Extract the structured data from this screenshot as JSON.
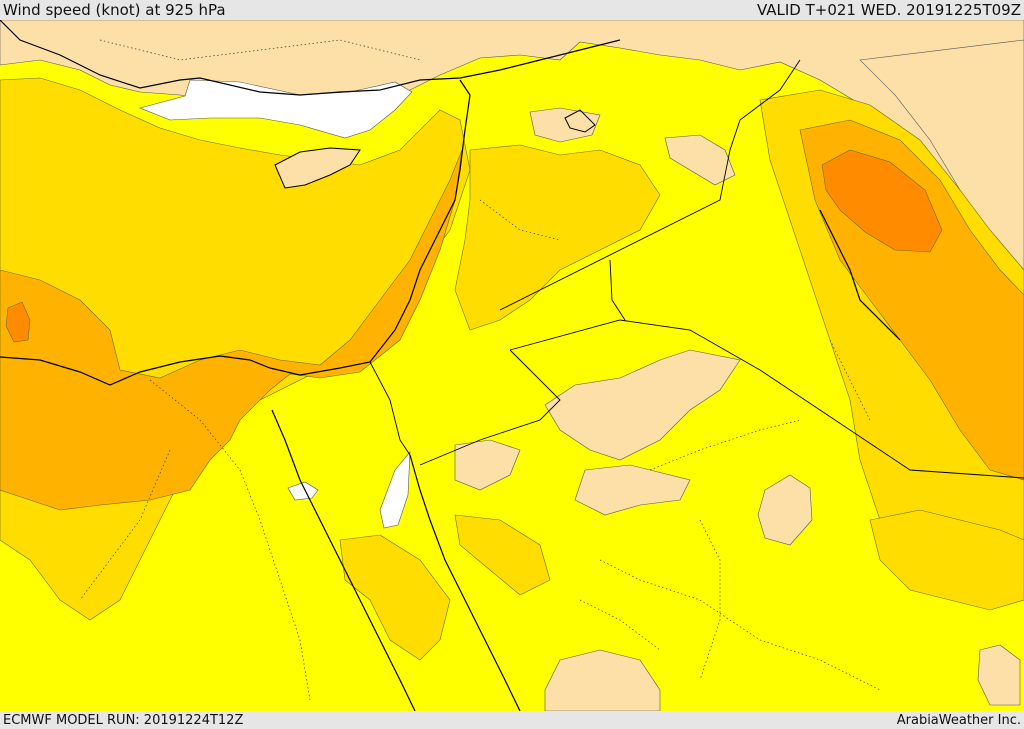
{
  "header": {
    "title": "Wind speed (knot) at 925 hPa",
    "valid": "VALID T+021 WED. 20191225T09Z"
  },
  "footer": {
    "model_run": "ECMWF MODEL RUN: 20191224T12Z",
    "credit": "ArabiaWeather Inc."
  },
  "colors": {
    "calm_white": "#ffffff",
    "low_tan": "#fde0a8",
    "yellow": "#ffff00",
    "gold": "#ffdd00",
    "orange_light": "#ffb300",
    "orange": "#ff8c00",
    "coast_line": "#000000",
    "contour_line": "#6b6b00"
  }
}
